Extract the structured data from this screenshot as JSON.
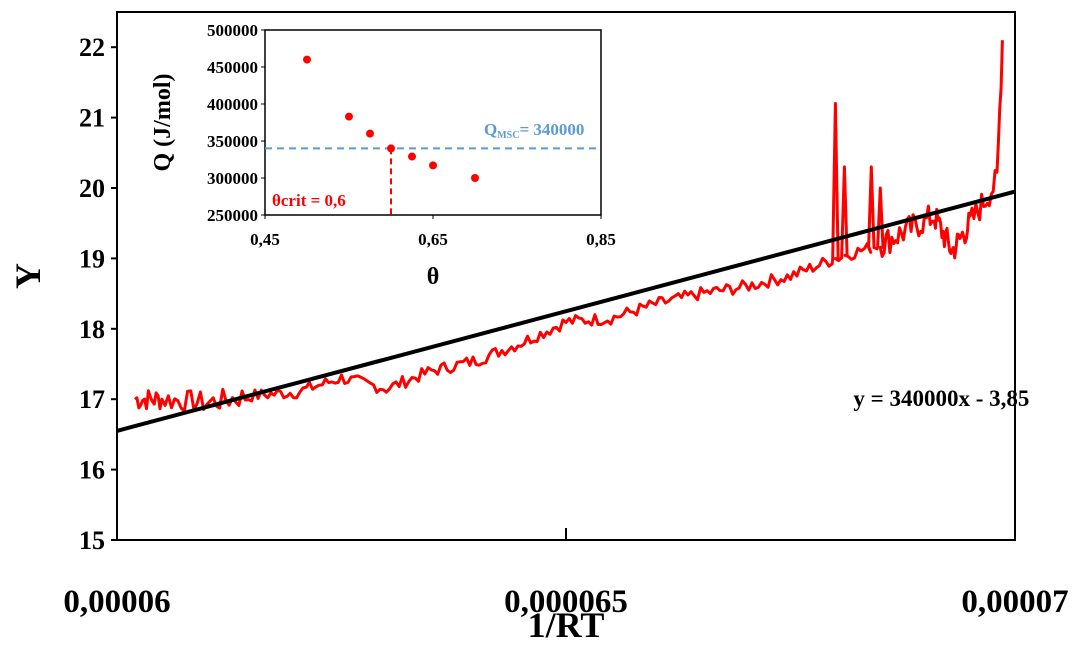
{
  "chart_data": [
    {
      "type": "line",
      "xlabel": "1/RT",
      "ylabel": "Y",
      "xlim": [
        6e-05,
        7e-05
      ],
      "ylim": [
        15,
        22.5
      ],
      "x_ticks": [
        "0,00006",
        "0,000065",
        "0,00007"
      ],
      "x_tick_values": [
        6e-05,
        6.5e-05,
        7e-05
      ],
      "y_ticks": [
        "15",
        "16",
        "17",
        "18",
        "19",
        "20",
        "21",
        "22"
      ],
      "grid": false,
      "series": [
        {
          "style": "noisy-line",
          "color": "#ff0000",
          "x": [
            6.02e-05,
            6.05e-05,
            6.1e-05,
            6.15e-05,
            6.2e-05,
            6.25e-05,
            6.3e-05,
            6.35e-05,
            6.4e-05,
            6.45e-05,
            6.5e-05,
            6.55e-05,
            6.6e-05,
            6.65e-05,
            6.7e-05,
            6.75e-05,
            6.8e-05,
            6.85e-05,
            6.88e-05,
            6.91e-05,
            6.93e-05,
            6.95e-05,
            6.98e-05,
            6.986e-05
          ],
          "y": [
            17.0,
            17.0,
            16.95,
            17.05,
            17.1,
            17.3,
            17.15,
            17.4,
            17.55,
            17.8,
            18.1,
            18.15,
            18.35,
            18.5,
            18.6,
            18.75,
            19.0,
            19.2,
            19.4,
            19.6,
            19.1,
            19.5,
            20.1,
            22.1
          ],
          "spikes": [
            {
              "x": 6.8e-05,
              "y": 21.2
            },
            {
              "x": 6.81e-05,
              "y": 20.3
            },
            {
              "x": 6.84e-05,
              "y": 20.3
            },
            {
              "x": 6.85e-05,
              "y": 20.0
            }
          ]
        },
        {
          "style": "fit-line",
          "color": "#000000",
          "x": [
            6e-05,
            7e-05
          ],
          "y": [
            16.55,
            19.95
          ]
        }
      ],
      "annotations": [
        {
          "text": "y = 340000x - 3,85",
          "x": 6.82e-05,
          "y": 16.9
        }
      ]
    },
    {
      "type": "scatter",
      "xlabel": "θ",
      "ylabel": "Q (J/mol)",
      "xlim": [
        0.45,
        0.85
      ],
      "ylim": [
        250000,
        500000
      ],
      "x_ticks": [
        "0,45",
        "0,65",
        "0,85"
      ],
      "x_tick_values": [
        0.45,
        0.65,
        0.85
      ],
      "y_ticks": [
        "250000",
        "300000",
        "350000",
        "400000",
        "450000",
        "500000"
      ],
      "y_tick_values": [
        250000,
        300000,
        350000,
        400000,
        450000,
        500000
      ],
      "grid": false,
      "points": [
        {
          "x": 0.5,
          "y": 460000
        },
        {
          "x": 0.55,
          "y": 383000
        },
        {
          "x": 0.575,
          "y": 360000
        },
        {
          "x": 0.6,
          "y": 340000
        },
        {
          "x": 0.625,
          "y": 329000
        },
        {
          "x": 0.65,
          "y": 317000
        },
        {
          "x": 0.7,
          "y": 300000
        }
      ],
      "point_color": "#ff0000",
      "reference_lines": [
        {
          "orientation": "horizontal",
          "value": 340000,
          "color": "#5b9bd5",
          "label_main": "Q",
          "label_sub": "MSC",
          "label_rest": "= 340000"
        },
        {
          "orientation": "vertical",
          "value": 0.6,
          "color": "#ff0000",
          "label": "θcrit = 0,6"
        }
      ]
    }
  ]
}
